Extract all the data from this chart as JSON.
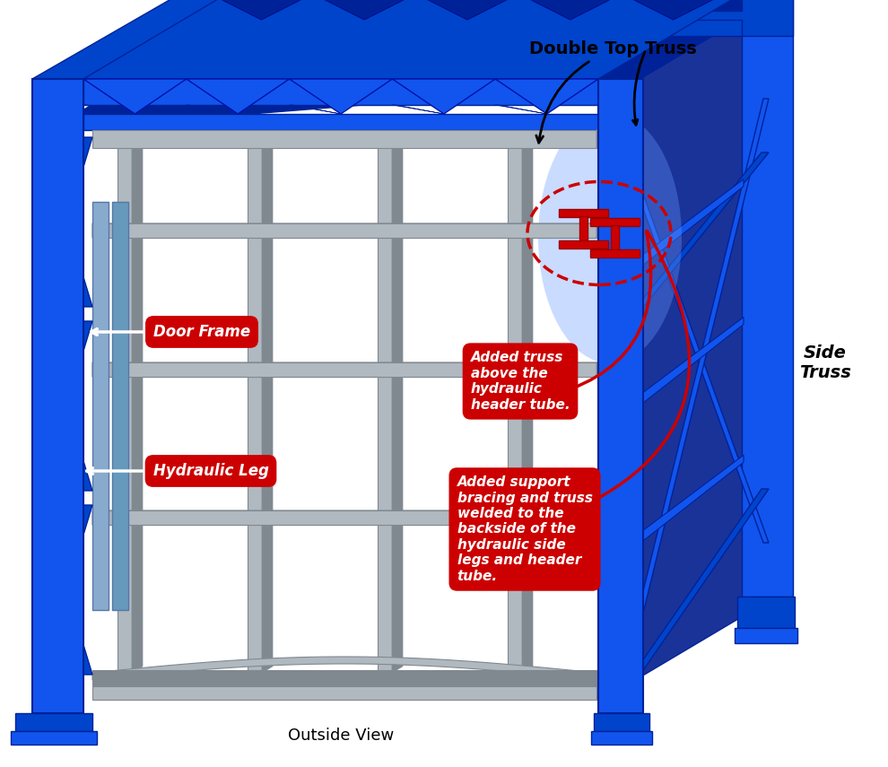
{
  "bg_color": "#ffffff",
  "blue": "#1155ee",
  "blue_mid": "#0044cc",
  "blue_dark": "#002299",
  "blue_side": "#1a3399",
  "gray": "#b0b8c0",
  "gray_dark": "#808890",
  "gray_light": "#d0d5da",
  "red": "#cc0000",
  "white": "#ffffff",
  "black": "#000000",
  "label_door_frame": "Door Frame",
  "label_hydraulic_leg": "Hydraulic Leg",
  "label_added_truss": "Added truss\nabove the\nhydraulic\nheader tube.",
  "label_added_support": "Added support\nbracing and truss\nwelded to the\nbackside of the\nhydraulic side\nlegs and header\ntube.",
  "label_double_top": "Double Top Truss",
  "label_side_truss": "Side\nTruss",
  "label_outside_view": "Outside View"
}
